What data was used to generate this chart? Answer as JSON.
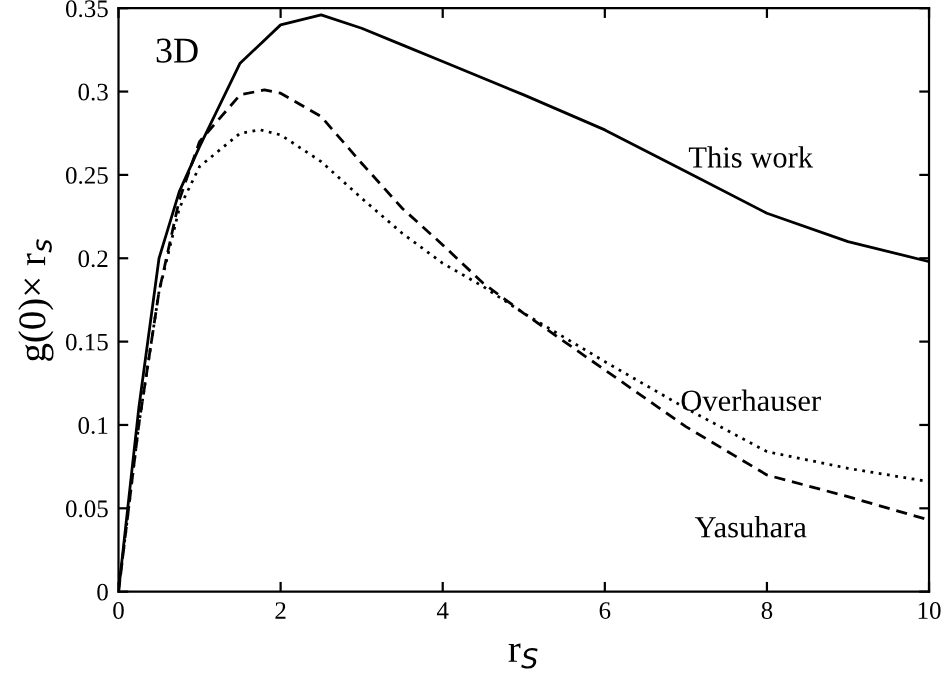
{
  "chart_data": {
    "type": "line",
    "xlabel": "r$_{S}$",
    "ylabel": "g(0)× r$_{s}$",
    "annotations": [
      "3D"
    ],
    "xlim": [
      0,
      10
    ],
    "ylim": [
      0,
      0.35
    ],
    "xticks": [
      0,
      2,
      4,
      6,
      8,
      10
    ],
    "yticks": [
      0,
      0.05,
      0.1,
      0.15,
      0.2,
      0.25,
      0.3,
      0.35
    ],
    "grid": false,
    "legend": false,
    "marker": "none",
    "series": [
      {
        "name": "This work",
        "color": "#000000",
        "line_style": "solid",
        "x": [
          0,
          0.25,
          0.5,
          0.75,
          1,
          1.5,
          2,
          2.5,
          3,
          3.5,
          4,
          5,
          6,
          7,
          8,
          9,
          10
        ],
        "values": [
          0,
          0.11,
          0.2,
          0.24,
          0.267,
          0.317,
          0.34,
          0.346,
          0.338,
          0.328,
          0.318,
          0.298,
          0.277,
          0.252,
          0.227,
          0.21,
          0.198
        ]
      },
      {
        "name": "Overhauser",
        "color": "#000000",
        "line_style": "dotted",
        "x": [
          0,
          0.25,
          0.5,
          0.75,
          1,
          1.5,
          1.75,
          2,
          2.5,
          3,
          3.5,
          4,
          4.5,
          5,
          6,
          7,
          8,
          9,
          10
        ],
        "values": [
          0,
          0.1,
          0.18,
          0.23,
          0.255,
          0.275,
          0.277,
          0.274,
          0.258,
          0.236,
          0.215,
          0.197,
          0.183,
          0.167,
          0.138,
          0.11,
          0.084,
          0.074,
          0.066
        ]
      },
      {
        "name": "Yasuhara",
        "color": "#000000",
        "line_style": "dashed",
        "x": [
          0,
          0.25,
          0.5,
          0.75,
          1,
          1.5,
          1.8,
          2,
          2.5,
          3,
          3.5,
          4,
          4.5,
          5,
          6,
          7,
          8,
          9,
          10
        ],
        "values": [
          0,
          0.1,
          0.18,
          0.235,
          0.27,
          0.298,
          0.301,
          0.299,
          0.285,
          0.257,
          0.23,
          0.208,
          0.185,
          0.167,
          0.133,
          0.099,
          0.07,
          0.057,
          0.043
        ]
      }
    ]
  }
}
